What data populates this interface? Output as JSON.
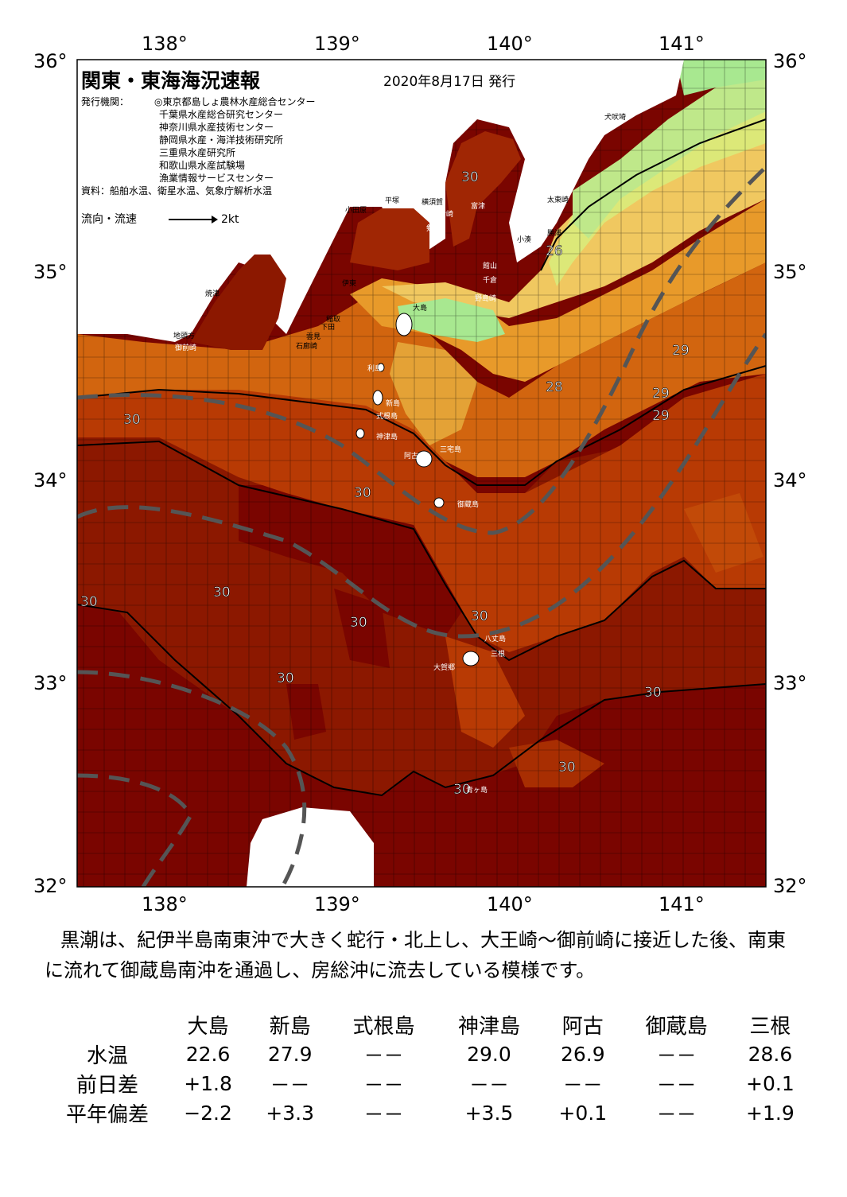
{
  "header": {
    "title": "関東・東海海況速報",
    "date": "2020年8月17日 発行",
    "issuer_label": "発行機関：",
    "issuers": [
      "◎東京都島しょ農林水産総合センター",
      "千葉県水産総合研究センター",
      "神奈川県水産技術センター",
      "静岡県水産・海洋技術研究所",
      "三重県水産研究所",
      "和歌山県水産試験場",
      "漁業情報サービスセンター"
    ],
    "source": "資料：船舶水温、衛星水温、気象庁解析水温",
    "flow_label": "流向・流速",
    "flow_scale": "2kt"
  },
  "axes": {
    "lon_ticks": [
      "138°",
      "139°",
      "140°",
      "141°"
    ],
    "lat_ticks": [
      "36°",
      "35°",
      "34°",
      "33°",
      "32°"
    ]
  },
  "map": {
    "place_names": [
      "犬吠埼",
      "太東崎",
      "勝浦",
      "小湊",
      "館山",
      "千倉",
      "野島崎",
      "富津",
      "横須賀",
      "観音崎",
      "剱崎",
      "平塚",
      "小田原",
      "沼津",
      "伊東",
      "稲取",
      "下田",
      "石廊崎",
      "雲見",
      "焼津",
      "御前崎",
      "地頭方",
      "大島",
      "利島",
      "新島",
      "式根島",
      "神津島",
      "三宅島",
      "御蔵島",
      "八丈島",
      "三根",
      "大賀郷",
      "阿古",
      "青ヶ島"
    ],
    "temperature_labels": [
      "30",
      "26",
      "29",
      "28",
      "29",
      "29",
      "30",
      "30",
      "30",
      "30",
      "30",
      "30",
      "30",
      "30",
      "30",
      "30",
      "30"
    ],
    "colors": {
      "sea_warmest": "#7a0500",
      "sea_30": "#8c1800",
      "sea_29": "#b83a04",
      "sea_28": "#d2650f",
      "sea_27": "#e89a2a",
      "sea_26": "#f0c860",
      "sea_25": "#dce878",
      "sea_cool": "#a8e890",
      "kuroshio_axis": "#555555",
      "land": "#ffffff"
    }
  },
  "summary": "黒潮は、紀伊半島南東沖で大きく蛇行・北上し、大王崎～御前崎に接近した後、南東に流れて御蔵島南沖を通過し、房総沖に流去している模様です。",
  "table": {
    "stations": [
      "大島",
      "新島",
      "式根島",
      "神津島",
      "阿古",
      "御蔵島",
      "三根"
    ],
    "rows": [
      {
        "label": "水温",
        "values": [
          "22.6",
          "27.9",
          "－－",
          "29.0",
          "26.9",
          "－－",
          "28.6"
        ]
      },
      {
        "label": "前日差",
        "values": [
          "+1.8",
          "－－",
          "－－",
          "－－",
          "－－",
          "－－",
          "+0.1"
        ]
      },
      {
        "label": "平年偏差",
        "values": [
          "−2.2",
          "+3.3",
          "－－",
          "+3.5",
          "+0.1",
          "－－",
          "+1.9"
        ]
      }
    ]
  }
}
